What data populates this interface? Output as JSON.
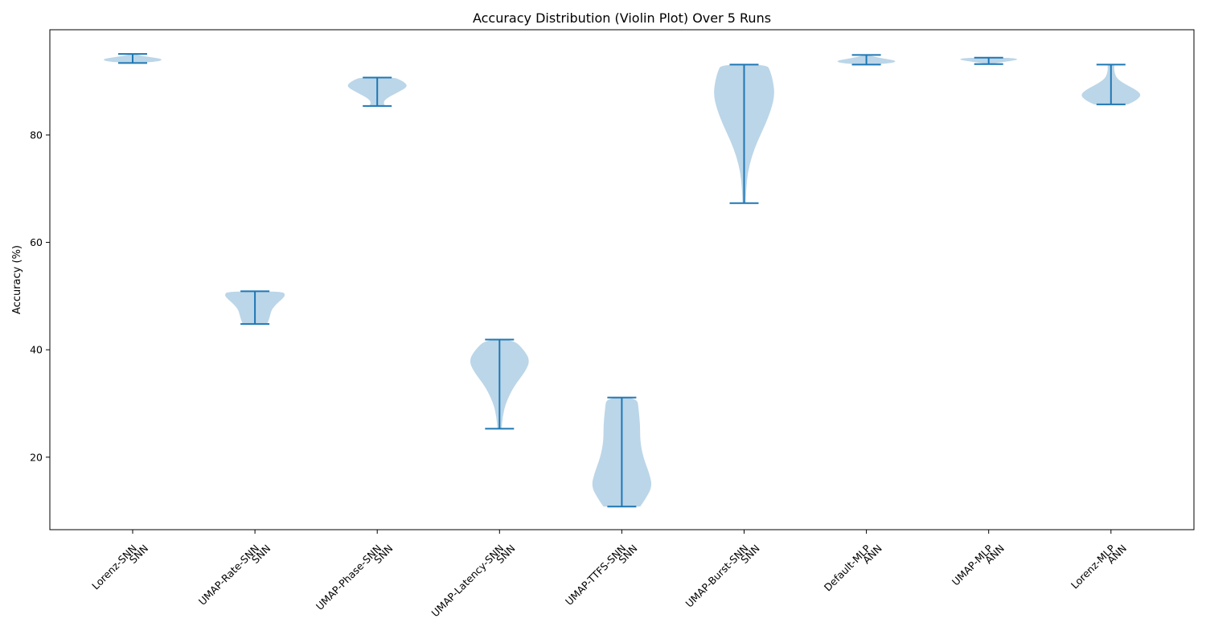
{
  "chart_data": {
    "type": "violin",
    "title": "Accuracy Distribution (Violin Plot) Over 5 Runs",
    "xlabel": "",
    "ylabel": "Accuracy (%)",
    "ylim": [
      6.5,
      99.6
    ],
    "yticks": [
      20,
      40,
      60,
      80
    ],
    "grid": false,
    "categories": [
      {
        "name": "Lorenz-SNN",
        "group": "SNN"
      },
      {
        "name": "UMAP-Rate-SNN",
        "group": "SNN"
      },
      {
        "name": "UMAP-Phase-SNN",
        "group": "SNN"
      },
      {
        "name": "UMAP-Latency-SNN",
        "group": "SNN"
      },
      {
        "name": "UMAP-TTFS-SNN",
        "group": "SNN"
      },
      {
        "name": "UMAP-Burst-SNN",
        "group": "SNN"
      },
      {
        "name": "Default-MLP",
        "group": "ANN"
      },
      {
        "name": "UMAP-MLP",
        "group": "ANN"
      },
      {
        "name": "Lorenz-MLP",
        "group": "ANN"
      }
    ],
    "series": [
      {
        "name": "Lorenz-SNN",
        "min": 93.4,
        "max": 95.1,
        "profile": [
          [
            93.4,
            0.15
          ],
          [
            93.7,
            0.85
          ],
          [
            94.1,
            1.0
          ],
          [
            94.5,
            0.6
          ],
          [
            94.8,
            0.25
          ],
          [
            95.1,
            0.05
          ]
        ]
      },
      {
        "name": "UMAP-Rate-SNN",
        "min": 44.8,
        "max": 50.9,
        "profile": [
          [
            44.8,
            0.4
          ],
          [
            45.5,
            0.45
          ],
          [
            46.5,
            0.5
          ],
          [
            47.5,
            0.55
          ],
          [
            48.5,
            0.7
          ],
          [
            49.5,
            0.9
          ],
          [
            50.2,
            1.0
          ],
          [
            50.9,
            0.9
          ]
        ]
      },
      {
        "name": "UMAP-Phase-SNN",
        "min": 85.4,
        "max": 90.7,
        "profile": [
          [
            85.4,
            0.25
          ],
          [
            86.2,
            0.2
          ],
          [
            87.0,
            0.35
          ],
          [
            88.0,
            0.7
          ],
          [
            89.0,
            1.0
          ],
          [
            89.8,
            0.9
          ],
          [
            90.4,
            0.7
          ],
          [
            90.7,
            0.55
          ]
        ]
      },
      {
        "name": "UMAP-Latency-SNN",
        "min": 25.3,
        "max": 41.9,
        "profile": [
          [
            25.3,
            0.07
          ],
          [
            27.5,
            0.1
          ],
          [
            30.0,
            0.2
          ],
          [
            33.0,
            0.45
          ],
          [
            36.0,
            0.85
          ],
          [
            38.0,
            1.0
          ],
          [
            40.0,
            0.8
          ],
          [
            41.9,
            0.45
          ]
        ]
      },
      {
        "name": "UMAP-TTFS-SNN",
        "min": 10.8,
        "max": 31.1,
        "profile": [
          [
            10.8,
            0.6
          ],
          [
            12.0,
            0.75
          ],
          [
            14.5,
            1.0
          ],
          [
            17.0,
            0.9
          ],
          [
            20.0,
            0.7
          ],
          [
            23.0,
            0.6
          ],
          [
            26.0,
            0.6
          ],
          [
            29.0,
            0.55
          ],
          [
            31.1,
            0.5
          ]
        ]
      },
      {
        "name": "UMAP-Burst-SNN",
        "min": 67.3,
        "max": 93.1,
        "profile": [
          [
            67.3,
            0.05
          ],
          [
            70.0,
            0.07
          ],
          [
            73.0,
            0.12
          ],
          [
            76.0,
            0.25
          ],
          [
            79.0,
            0.45
          ],
          [
            82.0,
            0.7
          ],
          [
            85.0,
            0.9
          ],
          [
            87.5,
            1.0
          ],
          [
            90.0,
            0.95
          ],
          [
            92.0,
            0.85
          ],
          [
            93.1,
            0.75
          ]
        ]
      },
      {
        "name": "Default-MLP",
        "min": 93.1,
        "max": 94.9,
        "profile": [
          [
            93.1,
            0.15
          ],
          [
            93.4,
            0.85
          ],
          [
            93.8,
            1.0
          ],
          [
            94.2,
            0.6
          ],
          [
            94.6,
            0.25
          ],
          [
            94.9,
            0.05
          ]
        ]
      },
      {
        "name": "UMAP-MLP",
        "min": 93.2,
        "max": 94.4,
        "profile": [
          [
            93.2,
            0.05
          ],
          [
            93.5,
            0.35
          ],
          [
            93.8,
            0.75
          ],
          [
            94.1,
            1.0
          ],
          [
            94.4,
            0.7
          ]
        ]
      },
      {
        "name": "Lorenz-MLP",
        "min": 85.7,
        "max": 93.1,
        "profile": [
          [
            85.7,
            0.55
          ],
          [
            86.5,
            0.85
          ],
          [
            87.5,
            1.0
          ],
          [
            88.5,
            0.8
          ],
          [
            89.5,
            0.45
          ],
          [
            90.5,
            0.2
          ],
          [
            91.5,
            0.12
          ],
          [
            92.5,
            0.1
          ],
          [
            93.1,
            0.12
          ]
        ]
      }
    ]
  }
}
